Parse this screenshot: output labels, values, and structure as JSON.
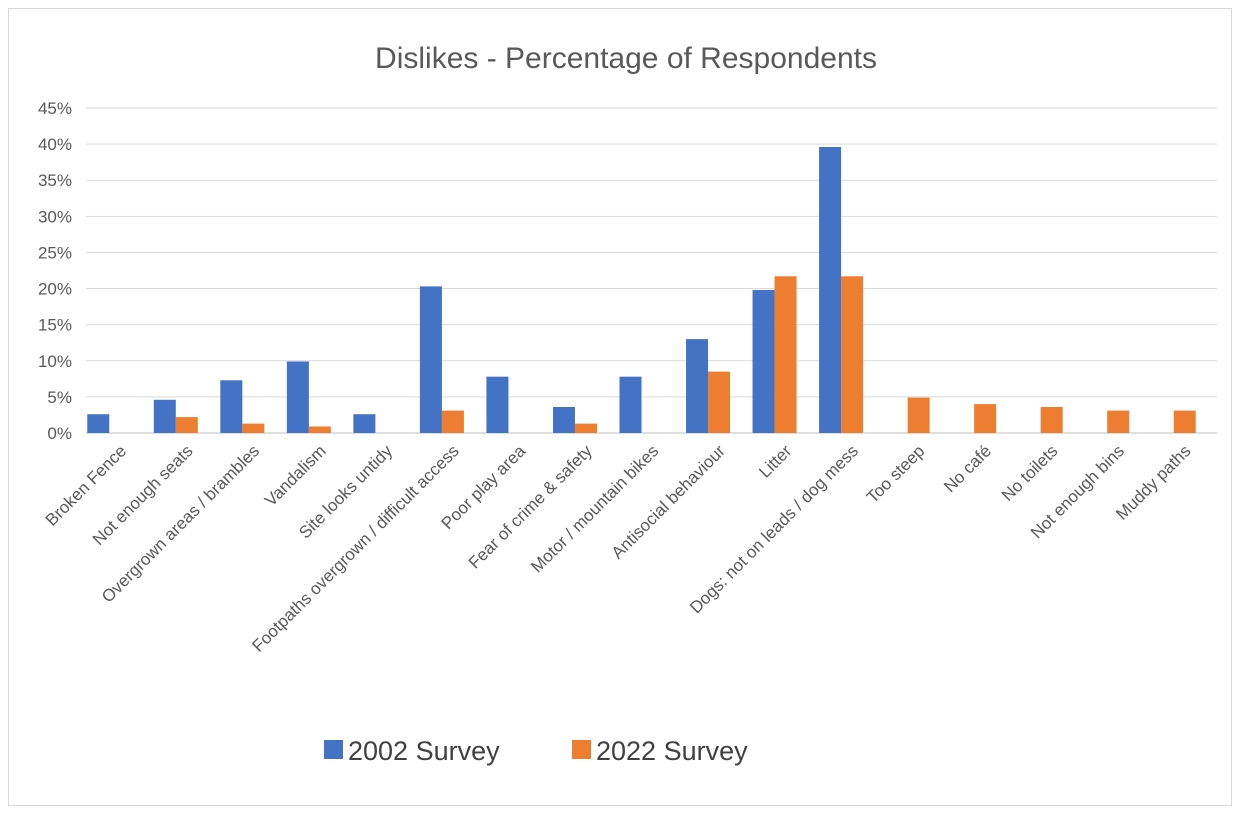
{
  "chart_data": {
    "type": "bar",
    "title": "Dislikes - Percentage of Respondents",
    "xlabel": "",
    "ylabel": "",
    "ylim": [
      0,
      45
    ],
    "ytick_values": [
      0,
      5,
      10,
      15,
      20,
      25,
      30,
      35,
      40,
      45
    ],
    "ytick_labels": [
      "0%",
      "5%",
      "10%",
      "15%",
      "20%",
      "25%",
      "30%",
      "35%",
      "40%",
      "45%"
    ],
    "grid": "horizontal",
    "legend_position": "bottom",
    "categories": [
      "Broken Fence",
      "Not enough seats",
      "Overgrown areas / brambles",
      "Vandalism",
      "Site looks untidy",
      "Footpaths overgrown / difficult access",
      "Poor play area",
      "Fear of crime & safety",
      "Motor / mountain bikes",
      "Antisocial behaviour",
      "Litter",
      "Dogs: not on leads / dog mess",
      "Too steep",
      "No café",
      "No toilets",
      "Not enough bins",
      "Muddy paths"
    ],
    "series": [
      {
        "name": "2002 Survey",
        "color": "#4472c4",
        "values": [
          2.6,
          4.6,
          7.3,
          9.9,
          2.6,
          20.3,
          7.8,
          3.6,
          7.8,
          13.0,
          19.8,
          39.6,
          0,
          0,
          0,
          0,
          0
        ]
      },
      {
        "name": "2022 Survey",
        "color": "#ed7d31",
        "values": [
          0,
          2.2,
          1.3,
          0.9,
          0,
          3.1,
          0,
          1.3,
          0,
          8.5,
          21.7,
          21.7,
          4.9,
          4.0,
          3.6,
          3.1,
          3.1
        ]
      }
    ]
  }
}
